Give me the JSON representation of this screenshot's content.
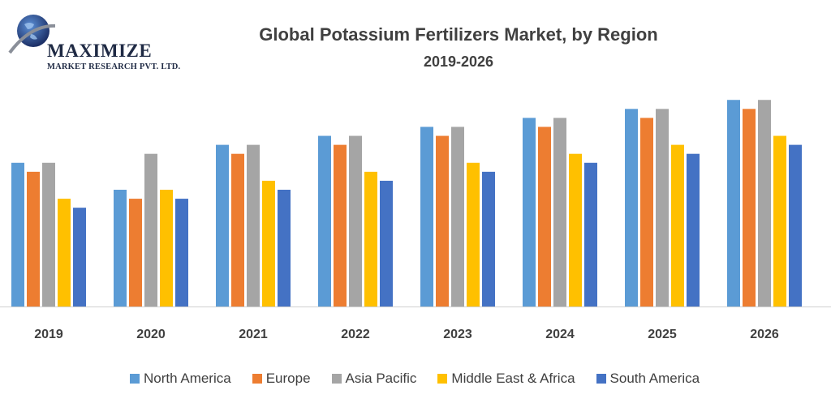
{
  "logo": {
    "name": "MAXIMIZE",
    "subtitle": "MARKET RESEARCH PVT. LTD."
  },
  "chart_data": {
    "type": "bar",
    "title": "Global Potassium Fertilizers Market, by Region",
    "subtitle": "2019-2026",
    "categories": [
      "2019",
      "2020",
      "2021",
      "2022",
      "2023",
      "2024",
      "2025",
      "2026"
    ],
    "ylim": [
      0,
      26
    ],
    "grid": false,
    "legend_position": "bottom",
    "series": [
      {
        "name": "North America",
        "color": "#5B9BD5",
        "values": [
          16,
          13,
          18,
          19,
          20,
          21,
          22,
          23
        ]
      },
      {
        "name": "Europe",
        "color": "#ED7D31",
        "values": [
          15,
          12,
          17,
          18,
          19,
          20,
          21,
          22
        ]
      },
      {
        "name": "Asia Pacific",
        "color": "#A5A5A5",
        "values": [
          16,
          17,
          18,
          19,
          20,
          21,
          22,
          23
        ]
      },
      {
        "name": "Middle East & Africa",
        "color": "#FFC000",
        "values": [
          12,
          13,
          14,
          15,
          16,
          17,
          18,
          19
        ]
      },
      {
        "name": "South America",
        "color": "#4472C4",
        "values": [
          11,
          12,
          13,
          14,
          15,
          16,
          17,
          18
        ]
      }
    ]
  }
}
